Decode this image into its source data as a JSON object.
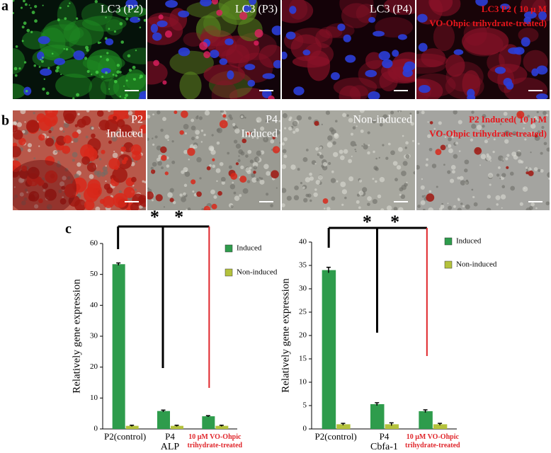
{
  "figure": {
    "panel_labels": [
      "a",
      "b",
      "c"
    ],
    "row_a": [
      [
        "LC3 (P2)"
      ],
      [
        "LC3 (P3)"
      ],
      [
        "LC3 (P4)"
      ],
      [
        "LC3 P2 ( 10 μ M",
        "VO-Ohpic trihydrate-treated)"
      ]
    ],
    "row_b": [
      [
        "P2",
        "Induced"
      ],
      [
        "P4",
        "Induced"
      ],
      [
        "Non-induced"
      ],
      [
        "P2 Induced( 10 μ M",
        "VO-Ohpic trihydrate-treated)"
      ]
    ],
    "caption_colors_a": [
      "#ffffff",
      "#ffffff",
      "#ffffff",
      "#e8161c"
    ],
    "caption_colors_b": [
      "#ffffff",
      "#ffffff",
      "#ffffff",
      "#e8161c"
    ]
  },
  "chart_data": [
    {
      "type": "bar",
      "ylabel": "Relatively gene expression",
      "xlabel": "ALP",
      "categories": [
        "P2(control)",
        "P4",
        "10 μM VO-Ohpic trihydrate-treated"
      ],
      "category_colors": [
        "#000000",
        "#000000",
        "#e0262b"
      ],
      "series": [
        {
          "name": "Induced",
          "color": "#2e9c4c",
          "values": [
            53.3,
            5.8,
            4.1
          ],
          "errors": [
            0.4,
            0.3,
            0.2
          ]
        },
        {
          "name": "Non-induced",
          "color": "#b4c23c",
          "values": [
            1.0,
            1.0,
            1.0
          ],
          "errors": [
            0.2,
            0.2,
            0.2
          ]
        }
      ],
      "ylim": [
        0,
        60
      ],
      "yticks": [
        0,
        10,
        20,
        30,
        40,
        50,
        60
      ],
      "annotations": [
        "*",
        "*"
      ],
      "legend": "right"
    },
    {
      "type": "bar",
      "ylabel": "Relatively gene expression",
      "xlabel": "Cbfa-1",
      "categories": [
        "P2(control)",
        "P4",
        "10 μM VO-Ohpic trihydrate-treated"
      ],
      "category_colors": [
        "#000000",
        "#000000",
        "#e0262b"
      ],
      "series": [
        {
          "name": "Induced",
          "color": "#2e9c4c",
          "values": [
            34.0,
            5.3,
            3.8
          ],
          "errors": [
            0.6,
            0.3,
            0.3
          ]
        },
        {
          "name": "Non-induced",
          "color": "#b4c23c",
          "values": [
            1.0,
            1.0,
            1.0
          ],
          "errors": [
            0.2,
            0.3,
            0.2
          ]
        }
      ],
      "ylim": [
        0,
        40
      ],
      "yticks": [
        0,
        5,
        10,
        15,
        20,
        25,
        30,
        35,
        40
      ],
      "annotations": [
        "*",
        "*"
      ],
      "legend": "right"
    }
  ]
}
